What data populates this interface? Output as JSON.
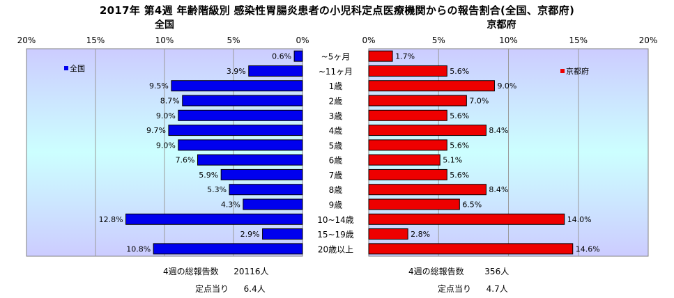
{
  "title": "2017年 第4週 年齢階級別 感染性胃腸炎患者の小児科定点医療機関からの報告割合(全国、京都府)",
  "colors": {
    "left_bar": "#0000ee",
    "right_bar": "#ee0000",
    "plot_bg_top": "#ccccff",
    "plot_bg_mid": "#ccffff"
  },
  "chart_data": [
    {
      "type": "bar",
      "orientation": "horizontal-mirrored",
      "title": "全国",
      "legend": {
        "label": "全国",
        "placement": "top-left"
      },
      "categories": [
        "~5ヶ月",
        "~11ヶ月",
        "1歳",
        "2歳",
        "3歳",
        "4歳",
        "5歳",
        "6歳",
        "7歳",
        "8歳",
        "9歳",
        "10~14歳",
        "15~19歳",
        "20歳以上"
      ],
      "values": [
        0.6,
        3.9,
        9.5,
        8.7,
        9.0,
        9.7,
        9.0,
        7.6,
        5.9,
        5.3,
        4.3,
        12.8,
        2.9,
        10.8
      ],
      "value_labels": [
        "0.6%",
        "3.9%",
        "9.5%",
        "8.7%",
        "9.0%",
        "9.7%",
        "9.0%",
        "7.6%",
        "5.9%",
        "5.3%",
        "4.3%",
        "12.8%",
        "2.9%",
        "10.8%"
      ],
      "xlim": [
        0,
        20
      ],
      "ticks": [
        "20%",
        "15%",
        "10%",
        "5%",
        "0%"
      ],
      "grid": true
    },
    {
      "type": "bar",
      "orientation": "horizontal",
      "title": "京都府",
      "legend": {
        "label": "京都府",
        "placement": "top-right"
      },
      "categories": [
        "~5ヶ月",
        "~11ヶ月",
        "1歳",
        "2歳",
        "3歳",
        "4歳",
        "5歳",
        "6歳",
        "7歳",
        "8歳",
        "9歳",
        "10~14歳",
        "15~19歳",
        "20歳以上"
      ],
      "values": [
        1.7,
        5.6,
        9.0,
        7.0,
        5.6,
        8.4,
        5.6,
        5.1,
        5.6,
        8.4,
        6.5,
        14.0,
        2.8,
        14.6
      ],
      "value_labels": [
        "1.7%",
        "5.6%",
        "9.0%",
        "7.0%",
        "5.6%",
        "8.4%",
        "5.6%",
        "5.1%",
        "5.6%",
        "8.4%",
        "6.5%",
        "14.0%",
        "2.8%",
        "14.6%"
      ],
      "xlim": [
        0,
        20
      ],
      "ticks": [
        "0%",
        "5%",
        "10%",
        "15%",
        "20%"
      ],
      "grid": true
    }
  ],
  "stats": {
    "left_total_label": "4週の総報告数",
    "left_total_value": "20116人",
    "left_per_label": "定点当り",
    "left_per_value": "6.4人",
    "right_total_label": "4週の総報告数",
    "right_total_value": "356人",
    "right_per_label": "定点当り",
    "right_per_value": "4.7人"
  }
}
